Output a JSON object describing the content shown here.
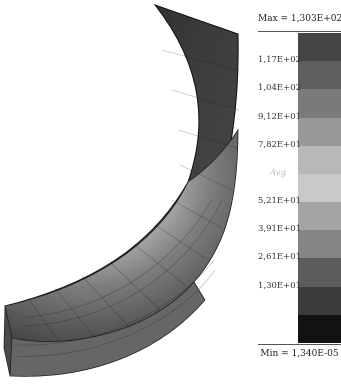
{
  "legend": {
    "max_label": "Max = 1,303E+02",
    "min_label": "Min = 1,340E-05",
    "avg_label": "Avg",
    "ticks": [
      "1,17E+02",
      "1,04E+02",
      "9,12E+01",
      "7,82E+01",
      "Avg",
      "5,21E+01",
      "3,91E+01",
      "2,61E+01",
      "1,30E+01"
    ],
    "colors": [
      "#454545",
      "#5e5e5e",
      "#7a7a7a",
      "#989898",
      "#b8b8b8",
      "#c9c9c9",
      "#a4a4a4",
      "#848484",
      "#5c5c5c",
      "#3b3b3b",
      "#121212"
    ]
  },
  "model": {
    "colors": {
      "outer_top": "#1b1b1b",
      "mid": "#5a5a5a",
      "light": "#a8a8a8",
      "lighter": "#cfcfcf",
      "inner_edge": "#d8d8d8",
      "bottom_dark": "#3a3a3a"
    }
  }
}
